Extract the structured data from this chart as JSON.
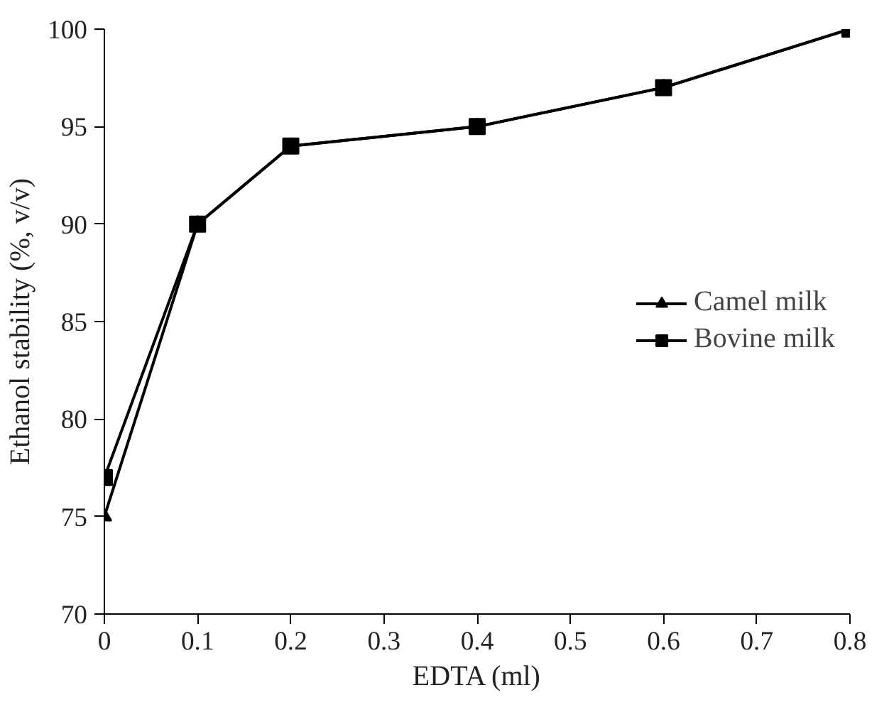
{
  "chart_data": {
    "type": "line",
    "xlabel": "EDTA (ml)",
    "ylabel": "Ethanol stability (%, v/v)",
    "x": [
      0,
      0.1,
      0.2,
      0.4,
      0.6,
      0.8
    ],
    "series": [
      {
        "name": "Camel milk",
        "color": "#000000",
        "marker": "triangle",
        "values": [
          75,
          90,
          94,
          95,
          97,
          100
        ]
      },
      {
        "name": "Bovine milk",
        "color": "#000000",
        "marker": "square",
        "values": [
          77,
          90,
          94,
          95,
          97,
          100
        ]
      }
    ],
    "xlim": [
      0,
      0.8
    ],
    "xticks": [
      0,
      0.1,
      0.2,
      0.3,
      0.4,
      0.5,
      0.6,
      0.7,
      0.8
    ],
    "ylim": [
      70,
      100
    ],
    "yticks": [
      70,
      75,
      80,
      85,
      90,
      95,
      100
    ],
    "grid": false,
    "legend": "right",
    "line_style": "solid"
  }
}
